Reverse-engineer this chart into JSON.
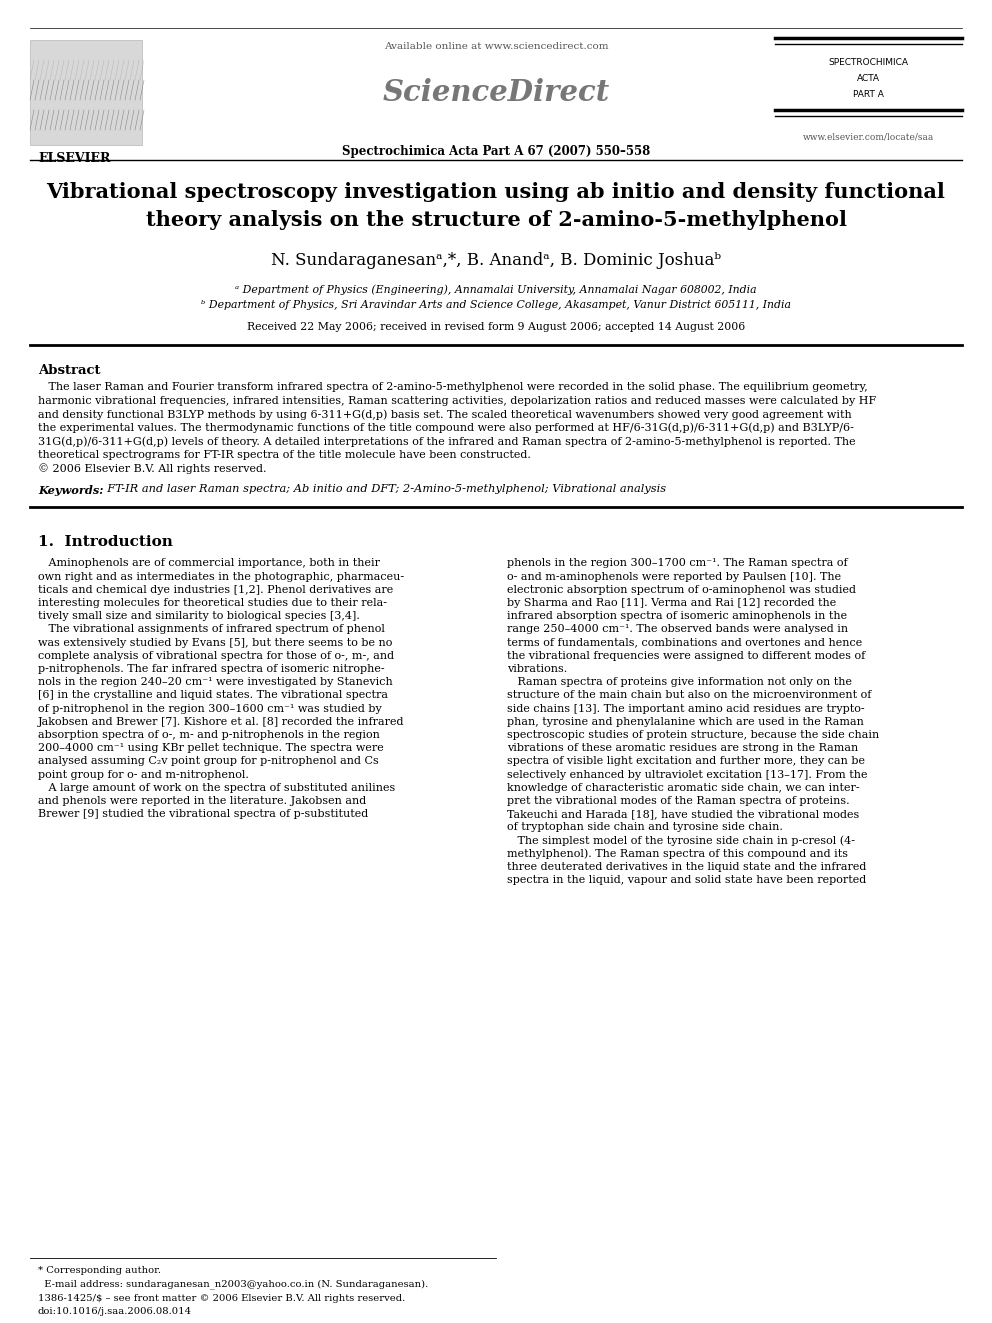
{
  "title_line1": "Vibrational spectroscopy investigation using ab initio and density functional",
  "title_line2": "theory analysis on the structure of 2-amino-5-methylphenol",
  "authors": "N. Sundaraganesanᵃ,*, B. Anandᵃ, B. Dominic Joshuaᵇ",
  "affil_a": "ᵃ Department of Physics (Engineering), Annamalai University, Annamalai Nagar 608002, India",
  "affil_b": "ᵇ Department of Physics, Sri Aravindar Arts and Science College, Akasampet, Vanur District 605111, India",
  "received": "Received 22 May 2006; received in revised form 9 August 2006; accepted 14 August 2006",
  "abstract_title": "Abstract",
  "keywords_label": "Keywords:",
  "keywords_text": "FT-IR and laser Raman spectra; Ab initio and DFT; 2-Amino-5-methylphenol; Vibrational analysis",
  "section1_title": "1.  Introduction",
  "journal_name": "Spectrochimica Acta Part A 67 (2007) 550–558",
  "available_online": "Available online at www.sciencedirect.com",
  "journal_abbrev_1": "SPECTROCHIMICA",
  "journal_abbrev_2": "ACTA",
  "journal_abbrev_3": "PART A",
  "journal_url": "www.elsevier.com/locate/saa",
  "elsevier_text": "ELSEVIER",
  "sciencedirect": "ScienceDirect",
  "bg_color": "#ffffff",
  "text_color": "#000000",
  "link_color": "#0000cc",
  "gray_color": "#888888",
  "abstract_text_1": "   The laser Raman and Fourier transform infrared spectra of 2-amino-5-methylphenol were recorded in the solid phase. The equilibrium geometry,",
  "abstract_text_2": "harmonic vibrational frequencies, infrared intensities, Raman scattering activities, depolarization ratios and reduced masses were calculated by HF",
  "abstract_text_3": "and density functional B3LYP methods by using 6-311+G(d,p) basis set. The scaled theoretical wavenumbers showed very good agreement with",
  "abstract_text_4": "the experimental values. The thermodynamic functions of the title compound were also performed at HF/6-31G(d,p)/6-311+G(d,p) and B3LYP/6-",
  "abstract_text_5": "31G(d,p)/6-311+G(d,p) levels of theory. A detailed interpretations of the infrared and Raman spectra of 2-amino-5-methylphenol is reported. The",
  "abstract_text_6": "theoretical spectrograms for FT-IR spectra of the title molecule have been constructed.",
  "abstract_text_7": "© 2006 Elsevier B.V. All rights reserved.",
  "left_col": [
    "   Aminophenols are of commercial importance, both in their",
    "own right and as intermediates in the photographic, pharmaceu-",
    "ticals and chemical dye industries [1,2]. Phenol derivatives are",
    "interesting molecules for theoretical studies due to their rela-",
    "tively small size and similarity to biological species [3,4].",
    "   The vibrational assignments of infrared spectrum of phenol",
    "was extensively studied by Evans [5], but there seems to be no",
    "complete analysis of vibrational spectra for those of o-, m-, and",
    "p-nitrophenols. The far infrared spectra of isomeric nitrophe-",
    "nols in the region 240–20 cm⁻¹ were investigated by Stanevich",
    "[6] in the crystalline and liquid states. The vibrational spectra",
    "of p-nitrophenol in the region 300–1600 cm⁻¹ was studied by",
    "Jakobsen and Brewer [7]. Kishore et al. [8] recorded the infrared",
    "absorption spectra of o-, m- and p-nitrophenols in the region",
    "200–4000 cm⁻¹ using KBr pellet technique. The spectra were",
    "analysed assuming C₂v point group for p-nitrophenol and Cs",
    "point group for o- and m-nitrophenol.",
    "   A large amount of work on the spectra of substituted anilines",
    "and phenols were reported in the literature. Jakobsen and",
    "Brewer [9] studied the vibrational spectra of p-substituted"
  ],
  "right_col": [
    "phenols in the region 300–1700 cm⁻¹. The Raman spectra of",
    "o- and m-aminophenols were reported by Paulsen [10]. The",
    "electronic absorption spectrum of o-aminophenol was studied",
    "by Sharma and Rao [11]. Verma and Rai [12] recorded the",
    "infrared absorption spectra of isomeric aminophenols in the",
    "range 250–4000 cm⁻¹. The observed bands were analysed in",
    "terms of fundamentals, combinations and overtones and hence",
    "the vibrational frequencies were assigned to different modes of",
    "vibrations.",
    "   Raman spectra of proteins give information not only on the",
    "structure of the main chain but also on the microenvironment of",
    "side chains [13]. The important amino acid residues are trypto-",
    "phan, tyrosine and phenylalanine which are used in the Raman",
    "spectroscopic studies of protein structure, because the side chain",
    "vibrations of these aromatic residues are strong in the Raman",
    "spectra of visible light excitation and further more, they can be",
    "selectively enhanced by ultraviolet excitation [13–17]. From the",
    "knowledge of characteristic aromatic side chain, we can inter-",
    "pret the vibrational modes of the Raman spectra of proteins.",
    "Takeuchi and Harada [18], have studied the vibrational modes",
    "of tryptophan side chain and tyrosine side chain.",
    "   The simplest model of the tyrosine side chain in p-cresol (4-",
    "methylphenol). The Raman spectra of this compound and its",
    "three deuterated derivatives in the liquid state and the infrared",
    "spectra in the liquid, vapour and solid state have been reported"
  ],
  "footer_corr": "* Corresponding author.",
  "footer_email": "  E-mail address: sundaraganesan_n2003@yahoo.co.in (N. Sundaraganesan).",
  "footer_issn": "1386-1425/$ – see front matter © 2006 Elsevier B.V. All rights reserved.",
  "footer_doi": "doi:10.1016/j.saa.2006.08.014"
}
